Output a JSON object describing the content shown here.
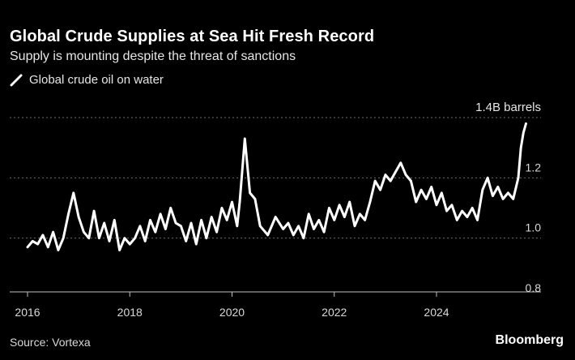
{
  "title": "Global Crude Supplies at Sea Hit Fresh Record",
  "subtitle": "Supply is mounting despite the threat of sanctions",
  "source": "Source: Vortexa",
  "brand": "Bloomberg",
  "colors": {
    "background": "#000000",
    "line": "#ffffff",
    "grid": "#6b6b6b",
    "text": "#d9d9d9"
  },
  "chart_data": {
    "type": "line",
    "title": "Global Crude Supplies at Sea Hit Fresh Record",
    "subtitle": "Supply is mounting despite the threat of sanctions",
    "xlabel": "",
    "ylabel": "Billion barrels",
    "legend": {
      "position": "top-left",
      "entries": [
        "Global crude oil on water"
      ]
    },
    "grid": true,
    "xlim": [
      2015.9,
      2026.3
    ],
    "ylim": [
      0.8,
      1.4
    ],
    "x_ticks": [
      {
        "value": 2016,
        "label": "2016"
      },
      {
        "value": 2018,
        "label": "2018"
      },
      {
        "value": 2020,
        "label": "2020"
      },
      {
        "value": 2022,
        "label": "2022"
      },
      {
        "value": 2024,
        "label": "2024"
      }
    ],
    "y_ticks": [
      {
        "value": 0.8,
        "label": "0.8"
      },
      {
        "value": 1.0,
        "label": "1.0"
      },
      {
        "value": 1.2,
        "label": "1.2"
      },
      {
        "value": 1.4,
        "label": "1.4B barrels"
      }
    ],
    "series": [
      {
        "name": "Global crude oil on water",
        "x": [
          2016.0,
          2016.1,
          2016.2,
          2016.3,
          2016.4,
          2016.5,
          2016.6,
          2016.7,
          2016.8,
          2016.9,
          2017.0,
          2017.1,
          2017.2,
          2017.3,
          2017.4,
          2017.5,
          2017.6,
          2017.7,
          2017.8,
          2017.9,
          2018.0,
          2018.1,
          2018.2,
          2018.3,
          2018.4,
          2018.5,
          2018.6,
          2018.7,
          2018.8,
          2018.9,
          2019.0,
          2019.1,
          2019.2,
          2019.3,
          2019.4,
          2019.5,
          2019.6,
          2019.7,
          2019.8,
          2019.9,
          2020.0,
          2020.1,
          2020.15,
          2020.25,
          2020.35,
          2020.45,
          2020.55,
          2020.7,
          2020.85,
          2021.0,
          2021.1,
          2021.2,
          2021.3,
          2021.4,
          2021.5,
          2021.6,
          2021.7,
          2021.8,
          2021.9,
          2022.0,
          2022.1,
          2022.2,
          2022.3,
          2022.4,
          2022.5,
          2022.6,
          2022.7,
          2022.8,
          2022.9,
          2023.0,
          2023.1,
          2023.2,
          2023.3,
          2023.4,
          2023.5,
          2023.6,
          2023.7,
          2023.8,
          2023.9,
          2024.0,
          2024.1,
          2024.2,
          2024.3,
          2024.4,
          2024.5,
          2024.6,
          2024.7,
          2024.8,
          2024.9,
          2025.0,
          2025.1,
          2025.2,
          2025.3,
          2025.4,
          2025.5,
          2025.6,
          2025.65,
          2025.7,
          2025.75
        ],
        "values": [
          0.97,
          0.99,
          0.98,
          1.01,
          0.97,
          1.02,
          0.96,
          1.0,
          1.08,
          1.15,
          1.07,
          1.02,
          1.0,
          1.09,
          1.0,
          1.05,
          0.99,
          1.06,
          0.96,
          1.0,
          0.98,
          1.0,
          1.04,
          0.99,
          1.06,
          1.02,
          1.08,
          1.03,
          1.1,
          1.05,
          1.04,
          0.99,
          1.05,
          0.98,
          1.06,
          1.0,
          1.07,
          1.02,
          1.1,
          1.06,
          1.12,
          1.04,
          1.12,
          1.33,
          1.15,
          1.13,
          1.04,
          1.01,
          1.07,
          1.03,
          1.05,
          1.01,
          1.04,
          1.0,
          1.08,
          1.03,
          1.06,
          1.02,
          1.1,
          1.06,
          1.11,
          1.07,
          1.12,
          1.04,
          1.08,
          1.06,
          1.12,
          1.19,
          1.16,
          1.21,
          1.19,
          1.22,
          1.25,
          1.21,
          1.19,
          1.12,
          1.16,
          1.13,
          1.17,
          1.11,
          1.15,
          1.09,
          1.11,
          1.06,
          1.09,
          1.07,
          1.1,
          1.06,
          1.16,
          1.2,
          1.14,
          1.17,
          1.13,
          1.15,
          1.13,
          1.2,
          1.3,
          1.35,
          1.38
        ]
      }
    ]
  }
}
